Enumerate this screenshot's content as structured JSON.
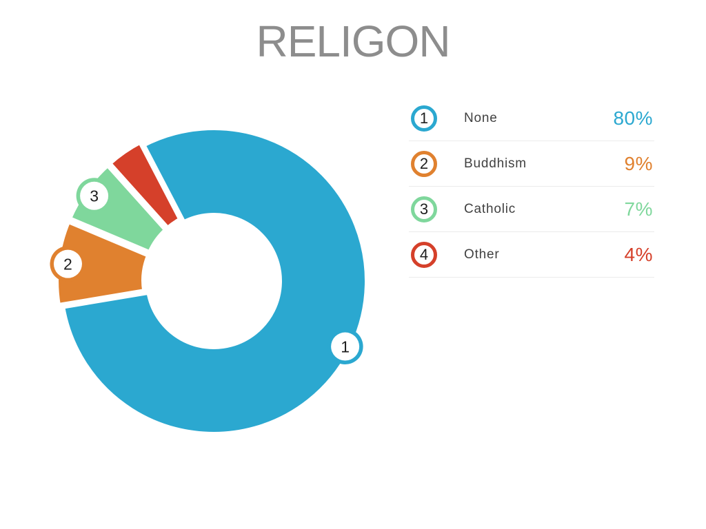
{
  "title": "RELIGON",
  "chart_data": {
    "type": "pie",
    "subtype": "donut",
    "title": "RELIGON",
    "legend_position": "right",
    "rotation_deg": -27.5,
    "total": 100,
    "slices": [
      {
        "index": 1,
        "label": "None",
        "value": 80,
        "percent_label": "80%",
        "color": "#2BA8D0",
        "exploded": false,
        "badge_on_chart": true
      },
      {
        "index": 2,
        "label": "Buddhism",
        "value": 9,
        "percent_label": "9%",
        "color": "#E0812F",
        "exploded": true,
        "badge_on_chart": true
      },
      {
        "index": 3,
        "label": "Catholic",
        "value": 7,
        "percent_label": "7%",
        "color": "#7FD79C",
        "exploded": true,
        "badge_on_chart": true
      },
      {
        "index": 4,
        "label": "Other",
        "value": 4,
        "percent_label": "4%",
        "color": "#D5402A",
        "exploded": true,
        "badge_on_chart": false
      }
    ]
  },
  "colors": {
    "background": "#FFFFFF",
    "title": "#8D8D8D",
    "label": "#414141",
    "badge_number": "#1E1E1E",
    "divider": "#EBEBEB",
    "slice_gap": "#FFFFFF"
  }
}
